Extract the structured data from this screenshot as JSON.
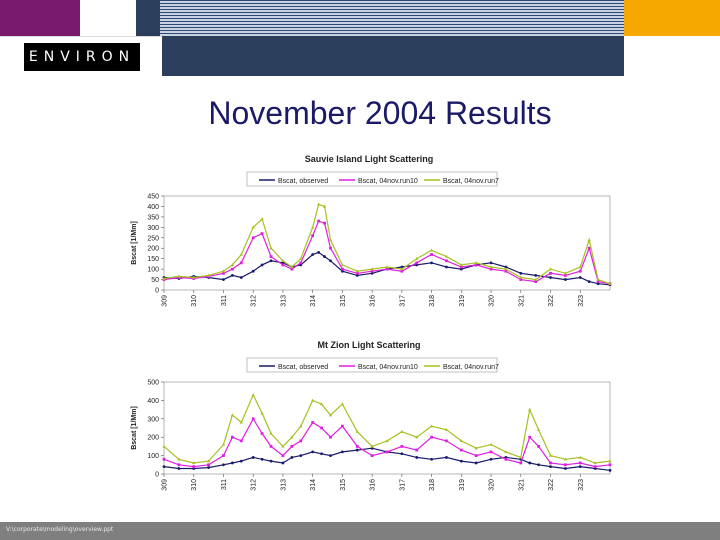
{
  "header": {
    "logo_text": "ENVIRON",
    "colors": {
      "purple": "#7a1a6e",
      "navy": "#2b3e5c",
      "orange": "#f5a800",
      "footer": "#7f7f7f"
    }
  },
  "slide": {
    "title": "November 2004 Results"
  },
  "footer": {
    "text": "V:\\corporate\\modeling\\overview.ppt"
  },
  "chart_data": [
    {
      "type": "line",
      "title": "Sauvie Island Light Scattering",
      "ylabel": "Bscat [1/Mm]",
      "xlabel": "",
      "ylim": [
        0,
        450
      ],
      "yticks": [
        0,
        50,
        100,
        150,
        200,
        250,
        300,
        350,
        400,
        450
      ],
      "xlim": [
        309,
        324
      ],
      "categories": [
        "309",
        "310",
        "311",
        "312",
        "313",
        "314",
        "315",
        "316",
        "317",
        "318",
        "319",
        "320",
        "321",
        "322",
        "323"
      ],
      "legend": "top",
      "series": [
        {
          "name": "Bscat, observed",
          "color": "#1a1a6e",
          "marker": "circle",
          "x": [
            309,
            309.5,
            310,
            310.5,
            311,
            311.3,
            311.6,
            312,
            312.3,
            312.6,
            313,
            313.3,
            313.6,
            314,
            314.2,
            314.4,
            314.6,
            315,
            315.5,
            316,
            316.5,
            317,
            317.5,
            318,
            318.5,
            319,
            319.5,
            320,
            320.5,
            321,
            321.5,
            322,
            322.5,
            323,
            323.3,
            323.6,
            324
          ],
          "y": [
            60,
            55,
            65,
            60,
            50,
            70,
            60,
            90,
            120,
            140,
            130,
            110,
            120,
            170,
            180,
            160,
            140,
            90,
            70,
            80,
            100,
            110,
            120,
            130,
            110,
            100,
            120,
            130,
            110,
            80,
            70,
            60,
            50,
            60,
            40,
            30,
            25
          ]
        },
        {
          "name": "Bscat, 04nov.run10",
          "color": "#e020e0",
          "marker": "square",
          "x": [
            309,
            309.5,
            310,
            310.5,
            311,
            311.3,
            311.6,
            312,
            312.3,
            312.6,
            313,
            313.3,
            313.6,
            314,
            314.2,
            314.4,
            314.6,
            315,
            315.5,
            316,
            316.5,
            317,
            317.5,
            318,
            318.5,
            319,
            319.5,
            320,
            320.5,
            321,
            321.5,
            322,
            322.5,
            323,
            323.3,
            323.6,
            324
          ],
          "y": [
            50,
            60,
            55,
            65,
            80,
            100,
            130,
            250,
            270,
            160,
            120,
            100,
            130,
            260,
            330,
            320,
            200,
            100,
            80,
            90,
            100,
            90,
            130,
            170,
            140,
            110,
            120,
            100,
            90,
            50,
            40,
            80,
            70,
            90,
            200,
            40,
            30
          ]
        },
        {
          "name": "Bscat, 04nov.run7",
          "color": "#a8c020",
          "marker": "triangle",
          "x": [
            309,
            309.5,
            310,
            310.5,
            311,
            311.3,
            311.6,
            312,
            312.3,
            312.6,
            313,
            313.3,
            313.6,
            314,
            314.2,
            314.4,
            314.6,
            315,
            315.5,
            316,
            316.5,
            317,
            317.5,
            318,
            318.5,
            319,
            319.5,
            320,
            320.5,
            321,
            321.5,
            322,
            322.5,
            323,
            323.3,
            323.6,
            324
          ],
          "y": [
            55,
            65,
            60,
            70,
            90,
            120,
            170,
            300,
            340,
            200,
            140,
            110,
            150,
            300,
            410,
            400,
            240,
            120,
            90,
            100,
            110,
            100,
            150,
            190,
            160,
            120,
            130,
            110,
            100,
            60,
            50,
            100,
            80,
            110,
            240,
            50,
            30
          ]
        }
      ]
    },
    {
      "type": "line",
      "title": "Mt Zion Light Scattering",
      "ylabel": "Bscat [1/Mm]",
      "xlabel": "",
      "ylim": [
        0,
        500
      ],
      "yticks": [
        0,
        100,
        200,
        300,
        400,
        500
      ],
      "xlim": [
        309,
        324
      ],
      "categories": [
        "309",
        "310",
        "311",
        "312",
        "313",
        "314",
        "315",
        "316",
        "317",
        "318",
        "319",
        "320",
        "321",
        "322",
        "323"
      ],
      "legend": "top",
      "series": [
        {
          "name": "Bscat, observed",
          "color": "#1a1a6e",
          "marker": "circle",
          "x": [
            309,
            309.5,
            310,
            310.5,
            311,
            311.3,
            311.6,
            312,
            312.3,
            312.6,
            313,
            313.3,
            313.6,
            314,
            314.3,
            314.6,
            315,
            315.5,
            316,
            316.5,
            317,
            317.5,
            318,
            318.5,
            319,
            319.5,
            320,
            320.5,
            321,
            321.3,
            321.6,
            322,
            322.5,
            323,
            323.5,
            324
          ],
          "y": [
            40,
            30,
            30,
            35,
            50,
            60,
            70,
            90,
            80,
            70,
            60,
            90,
            100,
            120,
            110,
            100,
            120,
            130,
            140,
            120,
            110,
            90,
            80,
            90,
            70,
            60,
            80,
            90,
            80,
            60,
            50,
            40,
            30,
            40,
            30,
            20
          ]
        },
        {
          "name": "Bscat, 04nov.run10",
          "color": "#e020e0",
          "marker": "square",
          "x": [
            309,
            309.5,
            310,
            310.5,
            311,
            311.3,
            311.6,
            312,
            312.3,
            312.6,
            313,
            313.3,
            313.6,
            314,
            314.3,
            314.6,
            315,
            315.5,
            316,
            316.5,
            317,
            317.5,
            318,
            318.5,
            319,
            319.5,
            320,
            320.5,
            321,
            321.3,
            321.6,
            322,
            322.5,
            323,
            323.5,
            324
          ],
          "y": [
            80,
            50,
            40,
            50,
            100,
            200,
            180,
            300,
            220,
            150,
            100,
            150,
            180,
            280,
            250,
            200,
            260,
            150,
            100,
            120,
            150,
            130,
            200,
            180,
            130,
            100,
            120,
            80,
            60,
            200,
            150,
            60,
            50,
            60,
            40,
            50
          ]
        },
        {
          "name": "Bscat, 04nov.run7",
          "color": "#a8c020",
          "marker": "triangle",
          "x": [
            309,
            309.5,
            310,
            310.5,
            311,
            311.3,
            311.6,
            312,
            312.3,
            312.6,
            313,
            313.3,
            313.6,
            314,
            314.3,
            314.6,
            315,
            315.5,
            316,
            316.5,
            317,
            317.5,
            318,
            318.5,
            319,
            319.5,
            320,
            320.5,
            321,
            321.3,
            321.6,
            322,
            322.5,
            323,
            323.5,
            324
          ],
          "y": [
            150,
            80,
            60,
            70,
            160,
            320,
            280,
            430,
            330,
            220,
            150,
            200,
            260,
            400,
            380,
            320,
            380,
            230,
            150,
            180,
            230,
            200,
            260,
            240,
            180,
            140,
            160,
            120,
            90,
            350,
            240,
            100,
            80,
            90,
            60,
            70
          ]
        }
      ]
    }
  ]
}
